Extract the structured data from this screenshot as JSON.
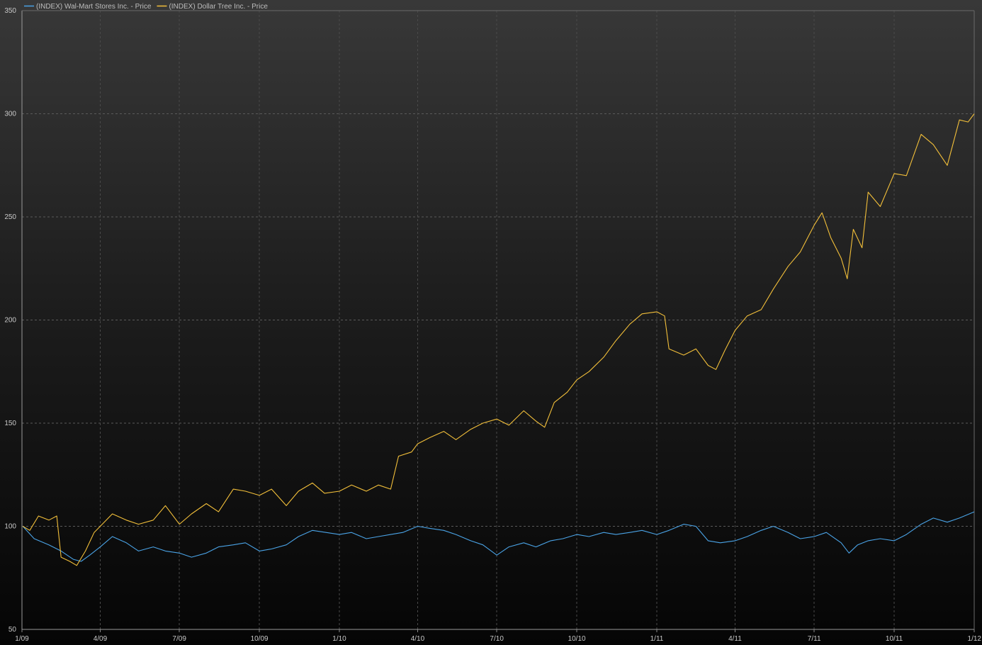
{
  "chart_data": {
    "type": "line",
    "title": "",
    "xlabel": "",
    "ylabel": "",
    "x_ticks": [
      "1/09",
      "4/09",
      "7/09",
      "10/09",
      "1/10",
      "4/10",
      "7/10",
      "10/10",
      "1/11",
      "4/11",
      "7/11",
      "10/11",
      "1/12"
    ],
    "y_ticks": [
      50,
      100,
      150,
      200,
      250,
      300,
      350
    ],
    "xlim": [
      "2009-01-01",
      "2012-01-01"
    ],
    "ylim": [
      50,
      350
    ],
    "grid": true,
    "legend_position": "top-left",
    "series": [
      {
        "name": "(INDEX) Wal-Mart Stores Inc. - Price",
        "color": "#4aa3e6",
        "points": [
          [
            "2009-01-02",
            100
          ],
          [
            "2009-01-15",
            94
          ],
          [
            "2009-02-01",
            91
          ],
          [
            "2009-02-15",
            88
          ],
          [
            "2009-03-01",
            84
          ],
          [
            "2009-03-10",
            83
          ],
          [
            "2009-03-20",
            86
          ],
          [
            "2009-04-01",
            90
          ],
          [
            "2009-04-15",
            95
          ],
          [
            "2009-05-01",
            92
          ],
          [
            "2009-05-15",
            88
          ],
          [
            "2009-06-01",
            90
          ],
          [
            "2009-06-15",
            88
          ],
          [
            "2009-07-01",
            87
          ],
          [
            "2009-07-15",
            85
          ],
          [
            "2009-08-01",
            87
          ],
          [
            "2009-08-15",
            90
          ],
          [
            "2009-09-01",
            91
          ],
          [
            "2009-09-15",
            92
          ],
          [
            "2009-10-01",
            88
          ],
          [
            "2009-10-15",
            89
          ],
          [
            "2009-11-01",
            91
          ],
          [
            "2009-11-15",
            95
          ],
          [
            "2009-12-01",
            98
          ],
          [
            "2010-01-01",
            96
          ],
          [
            "2010-01-15",
            97
          ],
          [
            "2010-02-01",
            94
          ],
          [
            "2010-02-15",
            95
          ],
          [
            "2010-03-01",
            96
          ],
          [
            "2010-03-15",
            97
          ],
          [
            "2010-04-01",
            100
          ],
          [
            "2010-04-15",
            99
          ],
          [
            "2010-05-01",
            98
          ],
          [
            "2010-05-15",
            96
          ],
          [
            "2010-06-01",
            93
          ],
          [
            "2010-06-15",
            91
          ],
          [
            "2010-07-01",
            86
          ],
          [
            "2010-07-15",
            90
          ],
          [
            "2010-08-01",
            92
          ],
          [
            "2010-08-15",
            90
          ],
          [
            "2010-09-01",
            93
          ],
          [
            "2010-09-15",
            94
          ],
          [
            "2010-10-01",
            96
          ],
          [
            "2010-10-15",
            95
          ],
          [
            "2010-11-01",
            97
          ],
          [
            "2010-11-15",
            96
          ],
          [
            "2010-12-01",
            97
          ],
          [
            "2010-12-15",
            98
          ],
          [
            "2011-01-01",
            96
          ],
          [
            "2011-01-15",
            98
          ],
          [
            "2011-02-01",
            101
          ],
          [
            "2011-02-15",
            100
          ],
          [
            "2011-03-01",
            93
          ],
          [
            "2011-03-15",
            92
          ],
          [
            "2011-04-01",
            93
          ],
          [
            "2011-04-15",
            95
          ],
          [
            "2011-05-01",
            98
          ],
          [
            "2011-05-15",
            100
          ],
          [
            "2011-06-01",
            97
          ],
          [
            "2011-06-15",
            94
          ],
          [
            "2011-07-01",
            95
          ],
          [
            "2011-07-15",
            97
          ],
          [
            "2011-08-01",
            92
          ],
          [
            "2011-08-10",
            87
          ],
          [
            "2011-08-20",
            91
          ],
          [
            "2011-09-01",
            93
          ],
          [
            "2011-09-15",
            94
          ],
          [
            "2011-10-01",
            93
          ],
          [
            "2011-10-15",
            96
          ],
          [
            "2011-11-01",
            101
          ],
          [
            "2011-11-15",
            104
          ],
          [
            "2011-12-01",
            102
          ],
          [
            "2011-12-15",
            104
          ],
          [
            "2012-01-01",
            107
          ]
        ]
      },
      {
        "name": "(INDEX) Dollar Tree Inc. - Price",
        "color": "#f2bf3a",
        "points": [
          [
            "2009-01-02",
            100
          ],
          [
            "2009-01-10",
            98
          ],
          [
            "2009-01-20",
            105
          ],
          [
            "2009-02-01",
            103
          ],
          [
            "2009-02-10",
            105
          ],
          [
            "2009-02-15",
            85
          ],
          [
            "2009-02-25",
            83
          ],
          [
            "2009-03-05",
            81
          ],
          [
            "2009-03-15",
            88
          ],
          [
            "2009-03-25",
            97
          ],
          [
            "2009-04-01",
            100
          ],
          [
            "2009-04-15",
            106
          ],
          [
            "2009-05-01",
            103
          ],
          [
            "2009-05-15",
            101
          ],
          [
            "2009-06-01",
            103
          ],
          [
            "2009-06-15",
            110
          ],
          [
            "2009-07-01",
            101
          ],
          [
            "2009-07-15",
            106
          ],
          [
            "2009-08-01",
            111
          ],
          [
            "2009-08-15",
            107
          ],
          [
            "2009-09-01",
            118
          ],
          [
            "2009-09-15",
            117
          ],
          [
            "2009-10-01",
            115
          ],
          [
            "2009-10-15",
            118
          ],
          [
            "2009-11-01",
            110
          ],
          [
            "2009-11-15",
            117
          ],
          [
            "2009-12-01",
            121
          ],
          [
            "2009-12-15",
            116
          ],
          [
            "2010-01-01",
            117
          ],
          [
            "2010-01-15",
            120
          ],
          [
            "2010-02-01",
            117
          ],
          [
            "2010-02-15",
            120
          ],
          [
            "2010-03-01",
            118
          ],
          [
            "2010-03-10",
            134
          ],
          [
            "2010-03-25",
            136
          ],
          [
            "2010-04-01",
            140
          ],
          [
            "2010-04-15",
            143
          ],
          [
            "2010-05-01",
            146
          ],
          [
            "2010-05-15",
            142
          ],
          [
            "2010-06-01",
            147
          ],
          [
            "2010-06-15",
            150
          ],
          [
            "2010-07-01",
            152
          ],
          [
            "2010-07-15",
            149
          ],
          [
            "2010-08-01",
            156
          ],
          [
            "2010-08-15",
            151
          ],
          [
            "2010-08-25",
            148
          ],
          [
            "2010-09-05",
            160
          ],
          [
            "2010-09-20",
            165
          ],
          [
            "2010-10-01",
            171
          ],
          [
            "2010-10-15",
            175
          ],
          [
            "2010-11-01",
            182
          ],
          [
            "2010-11-15",
            190
          ],
          [
            "2010-12-01",
            198
          ],
          [
            "2010-12-15",
            203
          ],
          [
            "2011-01-01",
            204
          ],
          [
            "2011-01-10",
            202
          ],
          [
            "2011-01-15",
            186
          ],
          [
            "2011-02-01",
            183
          ],
          [
            "2011-02-15",
            186
          ],
          [
            "2011-03-01",
            178
          ],
          [
            "2011-03-10",
            176
          ],
          [
            "2011-03-20",
            185
          ],
          [
            "2011-04-01",
            195
          ],
          [
            "2011-04-15",
            202
          ],
          [
            "2011-05-01",
            205
          ],
          [
            "2011-05-15",
            215
          ],
          [
            "2011-06-01",
            226
          ],
          [
            "2011-06-15",
            233
          ],
          [
            "2011-07-01",
            246
          ],
          [
            "2011-07-10",
            252
          ],
          [
            "2011-07-20",
            240
          ],
          [
            "2011-08-01",
            230
          ],
          [
            "2011-08-08",
            220
          ],
          [
            "2011-08-15",
            244
          ],
          [
            "2011-08-25",
            235
          ],
          [
            "2011-09-01",
            262
          ],
          [
            "2011-09-15",
            255
          ],
          [
            "2011-10-01",
            271
          ],
          [
            "2011-10-15",
            270
          ],
          [
            "2011-11-01",
            290
          ],
          [
            "2011-11-15",
            285
          ],
          [
            "2011-12-01",
            275
          ],
          [
            "2011-12-15",
            297
          ],
          [
            "2011-12-25",
            296
          ],
          [
            "2012-01-01",
            300
          ]
        ]
      }
    ]
  }
}
